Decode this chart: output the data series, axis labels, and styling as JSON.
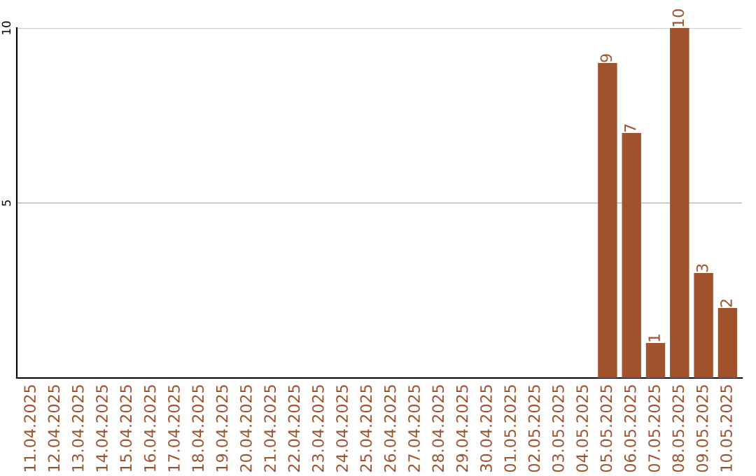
{
  "chart_data": {
    "type": "bar",
    "categories": [
      "11.04.2025",
      "12.04.2025",
      "13.04.2025",
      "14.04.2025",
      "15.04.2025",
      "16.04.2025",
      "17.04.2025",
      "18.04.2025",
      "19.04.2025",
      "20.04.2025",
      "21.04.2025",
      "22.04.2025",
      "23.04.2025",
      "24.04.2025",
      "25.04.2025",
      "26.04.2025",
      "27.04.2025",
      "28.04.2025",
      "29.04.2025",
      "30.04.2025",
      "01.05.2025",
      "02.05.2025",
      "03.05.2025",
      "04.05.2025",
      "05.05.2025",
      "06.05.2025",
      "07.05.2025",
      "08.05.2025",
      "09.05.2025",
      "10.05.2025"
    ],
    "values": [
      0,
      0,
      0,
      0,
      0,
      0,
      0,
      0,
      0,
      0,
      0,
      0,
      0,
      0,
      0,
      0,
      0,
      0,
      0,
      0,
      0,
      0,
      0,
      0,
      9,
      7,
      1,
      10,
      3,
      2
    ],
    "value_labels": [
      null,
      null,
      null,
      null,
      null,
      null,
      null,
      null,
      null,
      null,
      null,
      null,
      null,
      null,
      null,
      null,
      null,
      null,
      null,
      null,
      null,
      null,
      null,
      null,
      "9",
      "7",
      "1",
      "10",
      "3",
      "2"
    ],
    "color": "#a0522d",
    "ylim": [
      0,
      10
    ],
    "yticks": [
      5,
      10
    ],
    "grid": "y",
    "legend": false
  }
}
